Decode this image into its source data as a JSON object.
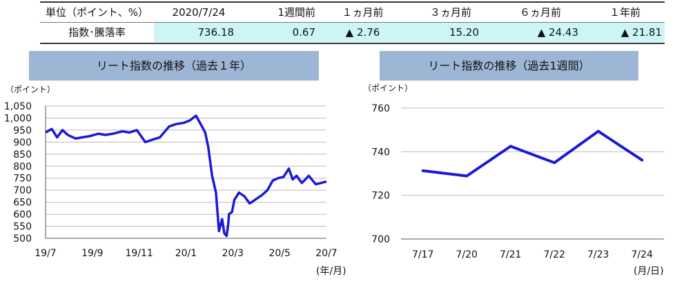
{
  "table": {
    "headers": [
      "単位（ポイント、%）",
      "2020/7/24",
      "1週間前",
      "１ヵ月前",
      "３ヵ月前",
      "６ヵ月前",
      "１年前"
    ],
    "row_label": "指数･騰落率",
    "values": [
      "736.18",
      "0.67",
      "▲ 2.76",
      "15.20",
      "▲ 24.43",
      "▲ 21.81"
    ]
  },
  "colors": {
    "line": "#1a1ad6",
    "title_bg": "#9eb6d6",
    "highlight": "#ccf6f6"
  },
  "chart_data": [
    {
      "type": "line",
      "title": "リート指数の推移（過去１年）",
      "ylabel": "（ポイント）",
      "xlabel": "(年/月)",
      "ylim": [
        500,
        1050
      ],
      "y_ticks": [
        "1,050",
        "1,000",
        "950",
        "900",
        "850",
        "800",
        "750",
        "700",
        "650",
        "600",
        "550",
        "500"
      ],
      "x_tick_labels": [
        "19/7",
        "19/9",
        "19/11",
        "20/1",
        "20/3",
        "20/5",
        "20/7"
      ],
      "x_range": [
        "2019-07-24",
        "2020-07-24"
      ],
      "grid": true,
      "series": [
        {
          "x": [
            "2019-07-24",
            "2019-08-01",
            "2019-08-08",
            "2019-08-15",
            "2019-08-22",
            "2019-09-01",
            "2019-09-10",
            "2019-09-20",
            "2019-10-01",
            "2019-10-10",
            "2019-10-20",
            "2019-11-01",
            "2019-11-10",
            "2019-11-20",
            "2019-12-01",
            "2019-12-10",
            "2019-12-20",
            "2020-01-01",
            "2020-01-10",
            "2020-01-20",
            "2020-01-28",
            "2020-02-05",
            "2020-02-12",
            "2020-02-17",
            "2020-02-21",
            "2020-02-26",
            "2020-03-02",
            "2020-03-06",
            "2020-03-10",
            "2020-03-13",
            "2020-03-16",
            "2020-03-18",
            "2020-03-19",
            "2020-03-23",
            "2020-03-26",
            "2020-04-01",
            "2020-04-08",
            "2020-04-15",
            "2020-04-22",
            "2020-05-01",
            "2020-05-08",
            "2020-05-15",
            "2020-05-22",
            "2020-05-29",
            "2020-06-05",
            "2020-06-10",
            "2020-06-15",
            "2020-06-22",
            "2020-07-01",
            "2020-07-10",
            "2020-07-17",
            "2020-07-24"
          ],
          "y": [
            940,
            955,
            920,
            950,
            930,
            915,
            920,
            925,
            935,
            930,
            935,
            945,
            940,
            950,
            900,
            910,
            920,
            965,
            975,
            980,
            990,
            1010,
            970,
            940,
            880,
            760,
            690,
            530,
            580,
            520,
            510,
            560,
            600,
            610,
            660,
            690,
            675,
            645,
            660,
            680,
            700,
            740,
            750,
            755,
            790,
            745,
            760,
            730,
            760,
            725,
            730,
            736
          ]
        }
      ]
    },
    {
      "type": "line",
      "title": "リート指数の推移（過去1週間）",
      "ylabel": "（ポイント）",
      "xlabel": "(月/日)",
      "ylim": [
        700,
        760
      ],
      "y_ticks": [
        "760",
        "740",
        "720",
        "700"
      ],
      "categories": [
        "7/17",
        "7/20",
        "7/21",
        "7/22",
        "7/23",
        "7/24"
      ],
      "grid": true,
      "series": [
        {
          "values": [
            731.3,
            728.9,
            742.5,
            735.0,
            749.4,
            736.2
          ]
        }
      ]
    }
  ]
}
